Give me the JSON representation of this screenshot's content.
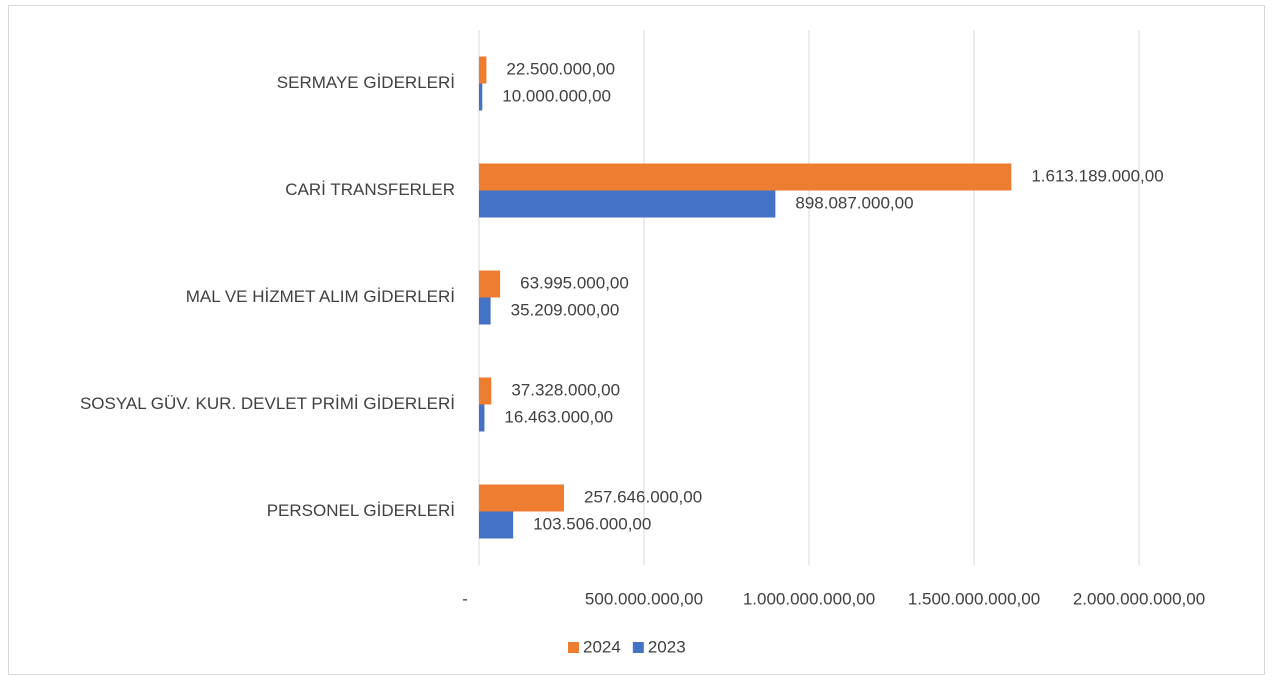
{
  "chart_data": {
    "type": "bar",
    "orientation": "horizontal",
    "categories": [
      "SERMAYE GİDERLERİ",
      "CARİ TRANSFERLER",
      "MAL VE HİZMET ALIM GİDERLERİ",
      "SOSYAL GÜV. KUR. DEVLET PRİMİ GİDERLERİ",
      "PERSONEL GİDERLERİ"
    ],
    "series": [
      {
        "name": "2024",
        "color": "#ed7d31",
        "values": [
          22500000,
          1613189000,
          63995000,
          37328000,
          257646000
        ],
        "value_labels": [
          "22.500.000,00",
          "1.613.189.000,00",
          "63.995.000,00",
          "37.328.000,00",
          "257.646.000,00"
        ]
      },
      {
        "name": "2023",
        "color": "#4472c4",
        "values": [
          10000000,
          898087000,
          35209000,
          16463000,
          103506000
        ],
        "value_labels": [
          "10.000.000,00",
          "898.087.000,00",
          "35.209.000,00",
          "16.463.000,00",
          "103.506.000,00"
        ]
      }
    ],
    "xlim": [
      0,
      2000000000
    ],
    "xticks": [
      {
        "value": 0,
        "label": "-"
      },
      {
        "value": 500000000,
        "label": "500.000.000,00"
      },
      {
        "value": 1000000000,
        "label": "1.000.000.000,00"
      },
      {
        "value": 1500000000,
        "label": "1.500.000.000,00"
      },
      {
        "value": 2000000000,
        "label": "2.000.000.000,00"
      }
    ],
    "grid": true,
    "legend": "bottom"
  }
}
